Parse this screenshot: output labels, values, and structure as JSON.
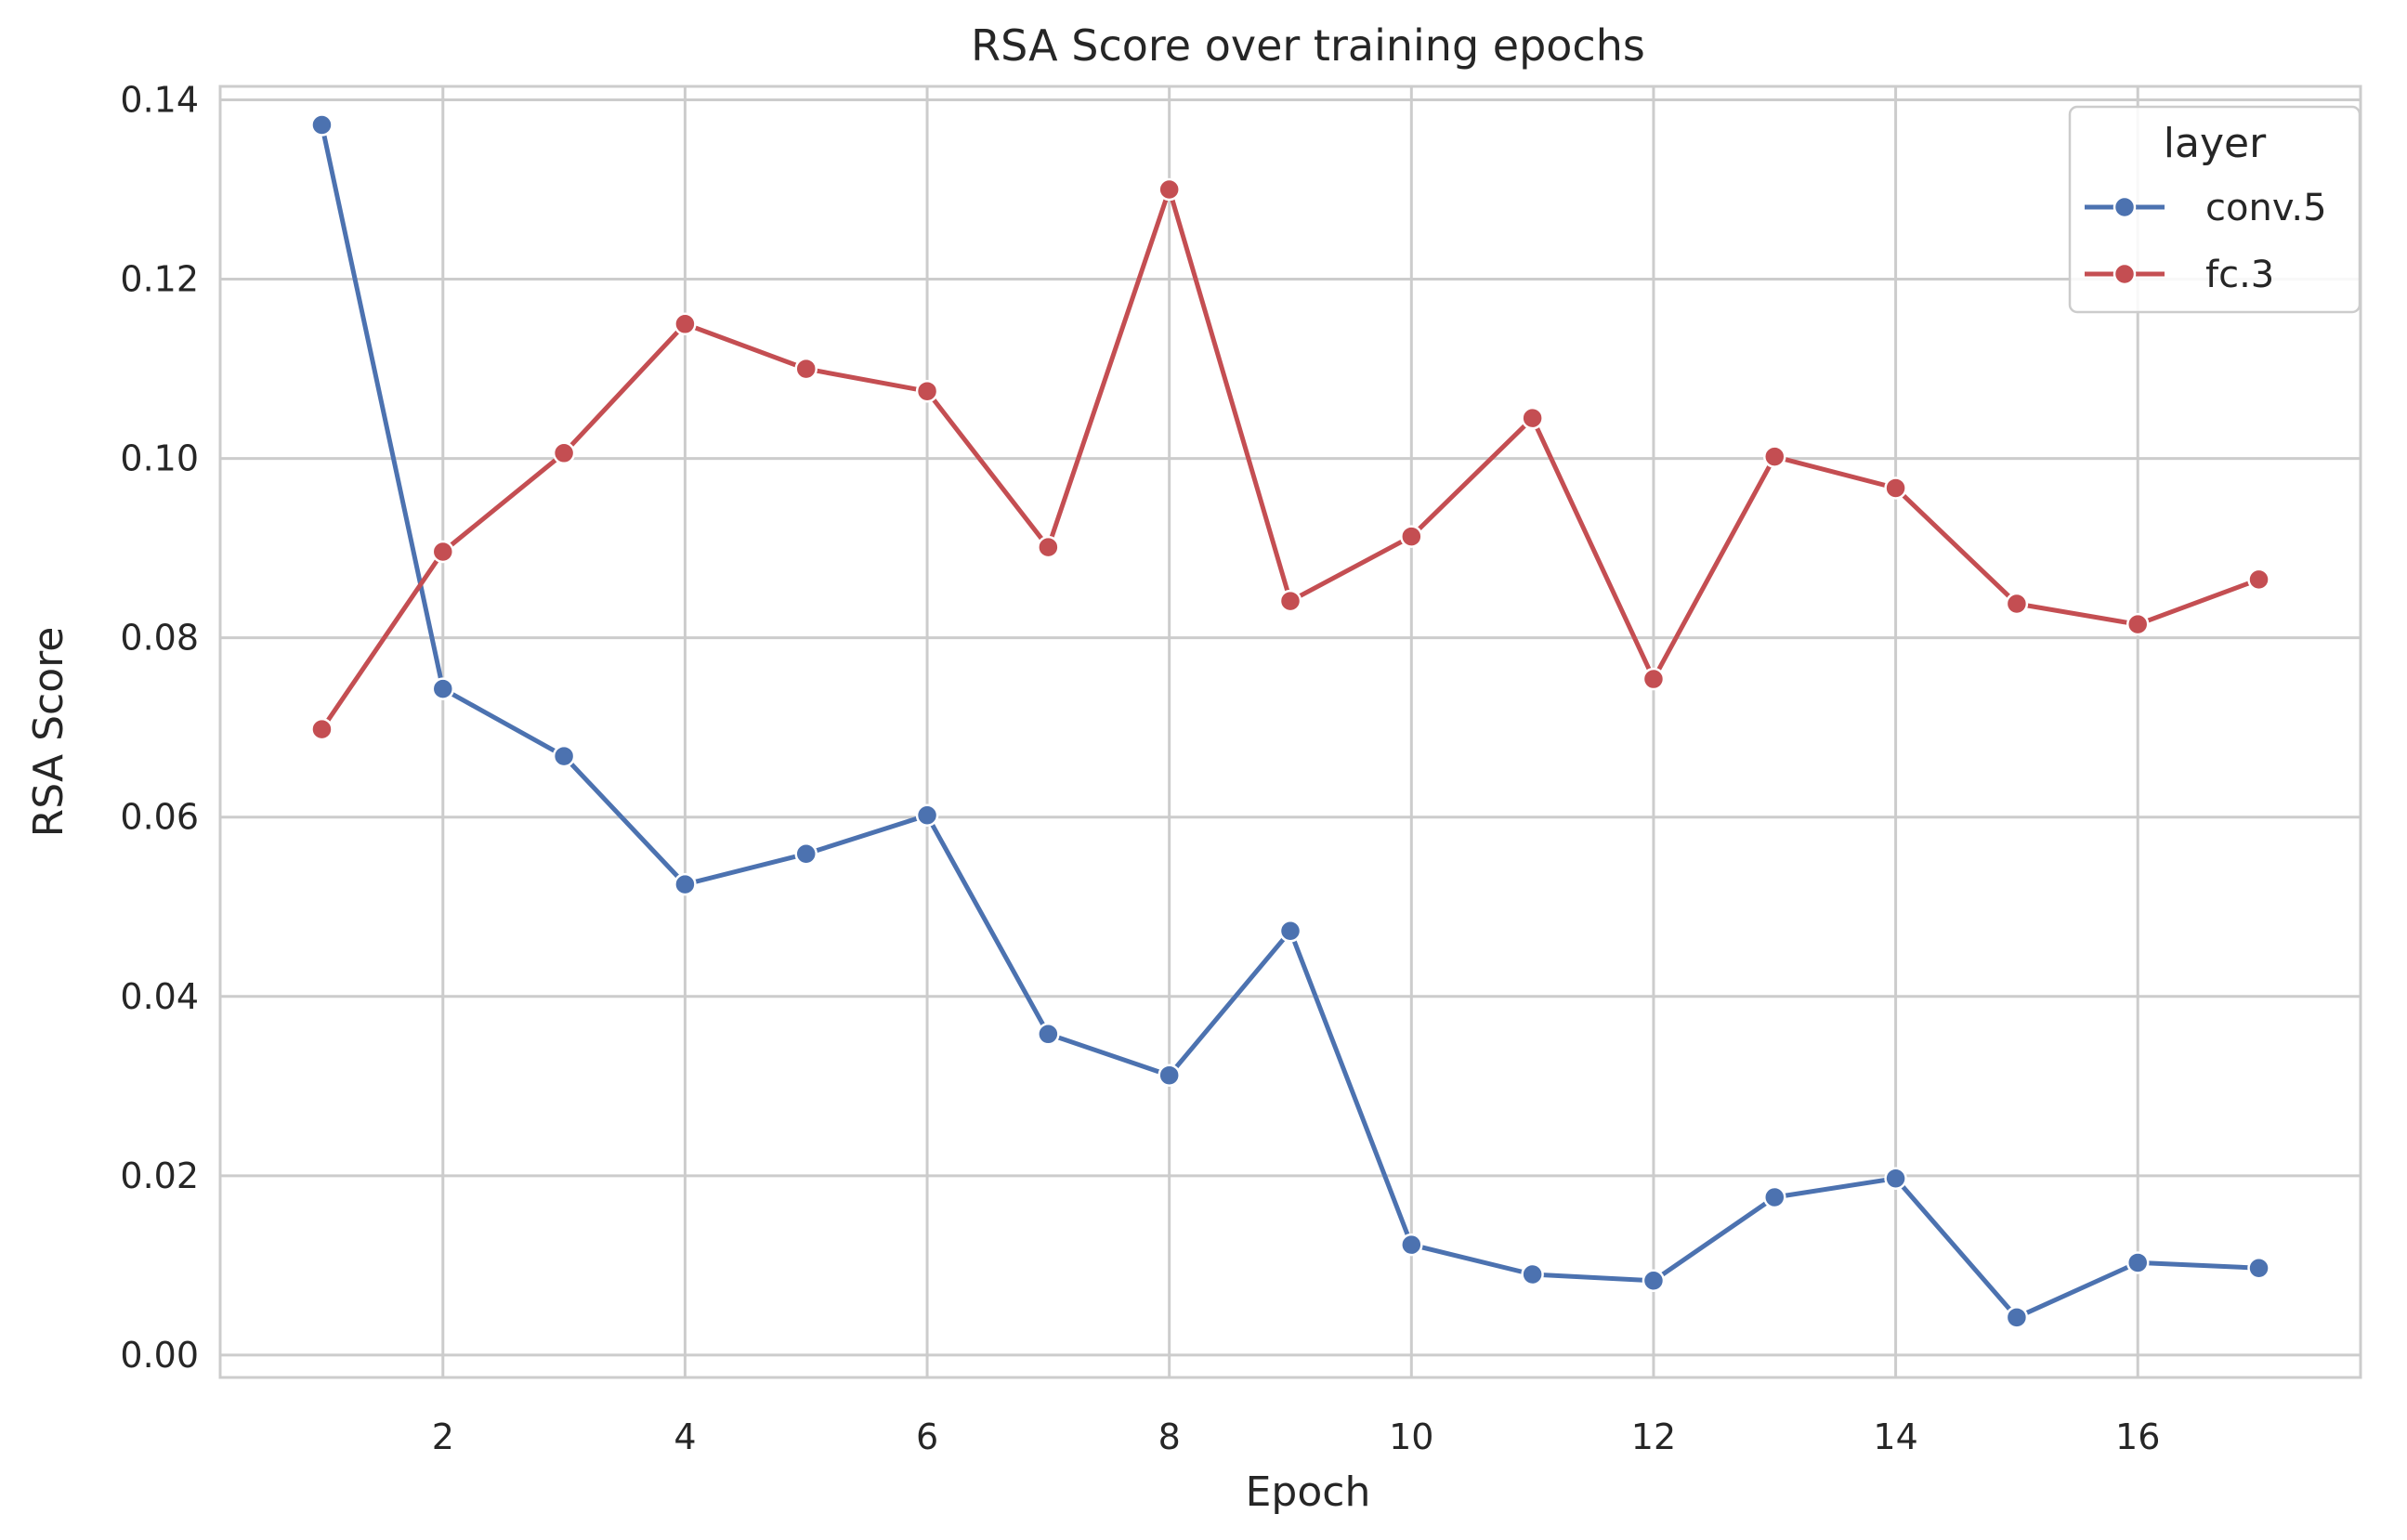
{
  "chart_data": {
    "type": "line",
    "title": "RSA Score over training epochs",
    "xlabel": "Epoch",
    "ylabel": "RSA Score",
    "xlim": [
      0.16,
      17.84
    ],
    "ylim": [
      -0.0025,
      0.1415
    ],
    "x_ticks": [
      2,
      4,
      6,
      8,
      10,
      12,
      14,
      16
    ],
    "y_ticks": [
      0.0,
      0.02,
      0.04,
      0.06,
      0.08,
      0.1,
      0.12,
      0.14
    ],
    "grid": true,
    "legend": {
      "title": "layer",
      "position": "top-right"
    },
    "x": [
      1,
      2,
      3,
      4,
      5,
      6,
      7,
      8,
      9,
      10,
      11,
      12,
      13,
      14,
      15,
      16,
      17
    ],
    "series": [
      {
        "name": "conv.5",
        "color": "#4c72b0",
        "values": [
          0.1372,
          0.0743,
          0.0668,
          0.0525,
          0.0559,
          0.0602,
          0.0358,
          0.0312,
          0.0473,
          0.0123,
          0.009,
          0.0083,
          0.0176,
          0.0197,
          0.0042,
          0.0103,
          0.0097
        ]
      },
      {
        "name": "fc.3",
        "color": "#c44e52",
        "values": [
          0.0698,
          0.0896,
          0.1006,
          0.115,
          0.11,
          0.1075,
          0.0901,
          0.13,
          0.0841,
          0.0913,
          0.1045,
          0.0754,
          0.1002,
          0.0967,
          0.0838,
          0.0815,
          0.0865
        ]
      }
    ]
  }
}
